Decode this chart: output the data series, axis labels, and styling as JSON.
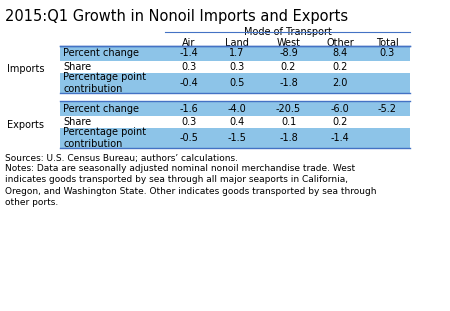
{
  "title": "2015:Q1 Growth in Nonoil Imports and Exports",
  "mode_of_transport_label": "Mode of Transport",
  "col_headers": [
    "Air",
    "Land",
    "West",
    "Other",
    "Total"
  ],
  "row_group_labels": [
    "Imports",
    "Exports"
  ],
  "row_labels": [
    [
      "Percent change",
      "Share",
      "Percentage point\ncontribution"
    ],
    [
      "Percent change",
      "Share",
      "Percentage point\ncontribution"
    ]
  ],
  "imports_data": [
    [
      "-1.4",
      "1.7",
      "-8.9",
      "8.4",
      "0.3"
    ],
    [
      "0.3",
      "0.3",
      "0.2",
      "0.2",
      ""
    ],
    [
      "-0.4",
      "0.5",
      "-1.8",
      "2.0",
      ""
    ]
  ],
  "exports_data": [
    [
      "-1.6",
      "-4.0",
      "-20.5",
      "-6.0",
      "-5.2"
    ],
    [
      "0.3",
      "0.4",
      "0.1",
      "0.2",
      ""
    ],
    [
      "-0.5",
      "-1.5",
      "-1.8",
      "-1.4",
      ""
    ]
  ],
  "source_text": "Sources: U.S. Census Bureau; authors’ calculations.",
  "notes_text": "Notes: Data are seasonally adjusted nominal nonoil merchandise trade. West\nindicates goods transported by sea through all major seaports in California,\nOregon, and Washington State. Other indicates goods transported by sea through\nother ports.",
  "cell_bg_color": "#8DC4E8",
  "white_color": "#FFFFFF",
  "line_color": "#4472C4",
  "text_color": "#000000",
  "bg_color": "#FFFFFF",
  "title_fontsize": 10.5,
  "body_fontsize": 7.0,
  "notes_fontsize": 6.5,
  "title_fontweight": "normal"
}
